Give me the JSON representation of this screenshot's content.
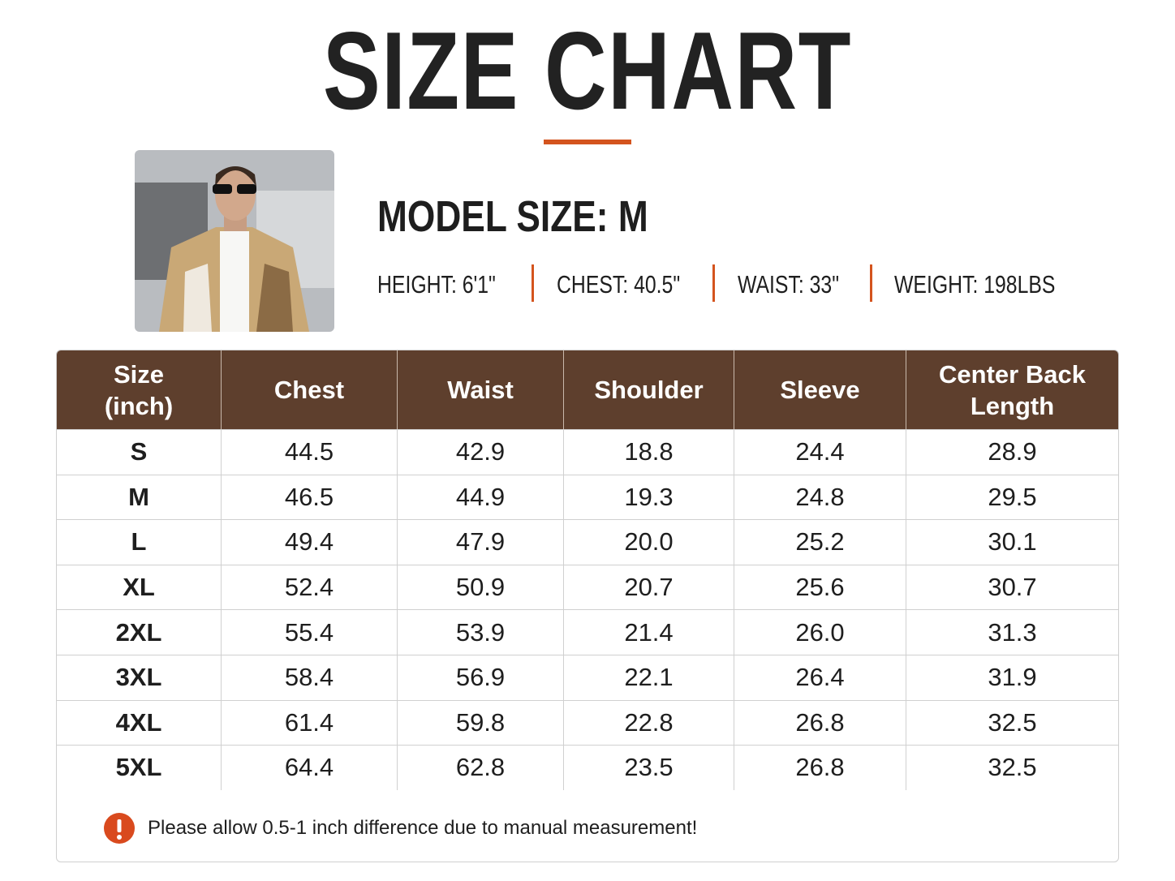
{
  "header": {
    "title": "SIZE CHART"
  },
  "model": {
    "title": "MODEL SIZE: M",
    "stats": [
      "HEIGHT: 6'1\"",
      "CHEST: 40.5\"",
      "WAIST: 33\"",
      "WEIGHT: 198LBS"
    ]
  },
  "table": {
    "columns": [
      "Size\n(inch)",
      "Chest",
      "Waist",
      "Shoulder",
      "Sleeve",
      "Center Back\nLength"
    ],
    "rows": [
      [
        "S",
        "44.5",
        "42.9",
        "18.8",
        "24.4",
        "28.9"
      ],
      [
        "M",
        "46.5",
        "44.9",
        "19.3",
        "24.8",
        "29.5"
      ],
      [
        "L",
        "49.4",
        "47.9",
        "20.0",
        "25.2",
        "30.1"
      ],
      [
        "XL",
        "52.4",
        "50.9",
        "20.7",
        "25.6",
        "30.7"
      ],
      [
        "2XL",
        "55.4",
        "53.9",
        "21.4",
        "26.0",
        "31.3"
      ],
      [
        "3XL",
        "58.4",
        "56.9",
        "22.1",
        "26.4",
        "31.9"
      ],
      [
        "4XL",
        "61.4",
        "59.8",
        "22.8",
        "26.8",
        "32.5"
      ],
      [
        "5XL",
        "64.4",
        "62.8",
        "23.5",
        "26.8",
        "32.5"
      ]
    ]
  },
  "note": "Please allow 0.5-1 inch difference due to manual measurement!"
}
